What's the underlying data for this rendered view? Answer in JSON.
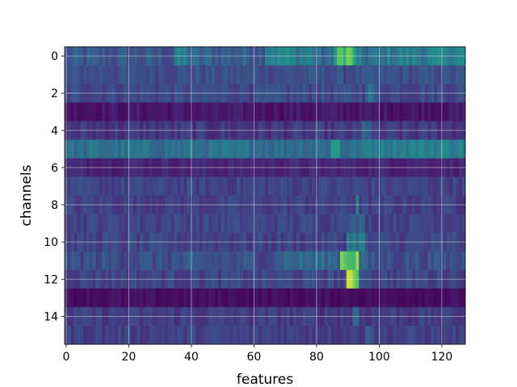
{
  "chart_data": {
    "type": "heatmap",
    "title": "",
    "xlabel": "features",
    "ylabel": "channels",
    "xlim": [
      -0.5,
      127.5
    ],
    "ylim": [
      15.5,
      -0.5
    ],
    "n_features": 128,
    "n_channels": 16,
    "x_ticks": [
      0,
      20,
      40,
      60,
      80,
      100,
      120
    ],
    "x_tick_labels": [
      "0",
      "20",
      "40",
      "60",
      "80",
      "100",
      "120"
    ],
    "y_ticks": [
      0,
      2,
      4,
      6,
      8,
      10,
      12,
      14
    ],
    "y_tick_labels": [
      "0",
      "2",
      "4",
      "6",
      "8",
      "10",
      "12",
      "14"
    ],
    "grid": true,
    "colormap": "viridis",
    "value_range": [
      0,
      1
    ],
    "channels": [
      {
        "channel": 0,
        "base": 0.4,
        "noise": 0.12,
        "segments": [
          [
            0,
            0.32
          ],
          [
            35,
            0.5
          ],
          [
            40,
            0.38
          ],
          [
            64,
            0.58
          ],
          [
            72,
            0.52
          ],
          [
            80,
            0.4
          ],
          [
            86,
            0.8
          ],
          [
            93,
            0.44
          ],
          [
            102,
            0.52
          ],
          [
            122,
            0.58
          ]
        ]
      },
      {
        "channel": 1,
        "base": 0.3,
        "noise": 0.08,
        "segments": []
      },
      {
        "channel": 2,
        "base": 0.28,
        "noise": 0.08,
        "segments": [
          [
            96,
            0.45
          ],
          [
            99,
            0.28
          ]
        ]
      },
      {
        "channel": 3,
        "base": 0.08,
        "noise": 0.05,
        "segments": []
      },
      {
        "channel": 4,
        "base": 0.2,
        "noise": 0.08,
        "segments": [
          [
            95,
            0.4
          ],
          [
            98,
            0.2
          ]
        ]
      },
      {
        "channel": 5,
        "base": 0.46,
        "noise": 0.08,
        "segments": [
          [
            85,
            0.66
          ],
          [
            88,
            0.46
          ],
          [
            96,
            0.55
          ]
        ]
      },
      {
        "channel": 6,
        "base": 0.14,
        "noise": 0.05,
        "segments": []
      },
      {
        "channel": 7,
        "base": 0.25,
        "noise": 0.07,
        "segments": []
      },
      {
        "channel": 8,
        "base": 0.24,
        "noise": 0.07,
        "segments": [
          [
            93,
            0.58
          ],
          [
            94,
            0.24
          ]
        ]
      },
      {
        "channel": 9,
        "base": 0.26,
        "noise": 0.07,
        "segments": [
          [
            88,
            0.36
          ],
          [
            96,
            0.26
          ]
        ]
      },
      {
        "channel": 10,
        "base": 0.25,
        "noise": 0.08,
        "segments": [
          [
            90,
            0.5
          ],
          [
            96,
            0.25
          ]
        ]
      },
      {
        "channel": 11,
        "base": 0.3,
        "noise": 0.1,
        "segments": [
          [
            68,
            0.42
          ],
          [
            88,
            0.86
          ],
          [
            94,
            0.44
          ],
          [
            96,
            0.3
          ]
        ]
      },
      {
        "channel": 12,
        "base": 0.26,
        "noise": 0.08,
        "segments": [
          [
            90,
            0.88
          ],
          [
            94,
            0.34
          ],
          [
            97,
            0.26
          ]
        ]
      },
      {
        "channel": 13,
        "base": 0.05,
        "noise": 0.04,
        "segments": []
      },
      {
        "channel": 14,
        "base": 0.22,
        "noise": 0.07,
        "segments": [
          [
            92,
            0.4
          ],
          [
            94,
            0.22
          ]
        ]
      },
      {
        "channel": 15,
        "base": 0.24,
        "noise": 0.07,
        "segments": [
          [
            96,
            0.42
          ],
          [
            98,
            0.24
          ]
        ]
      }
    ]
  }
}
